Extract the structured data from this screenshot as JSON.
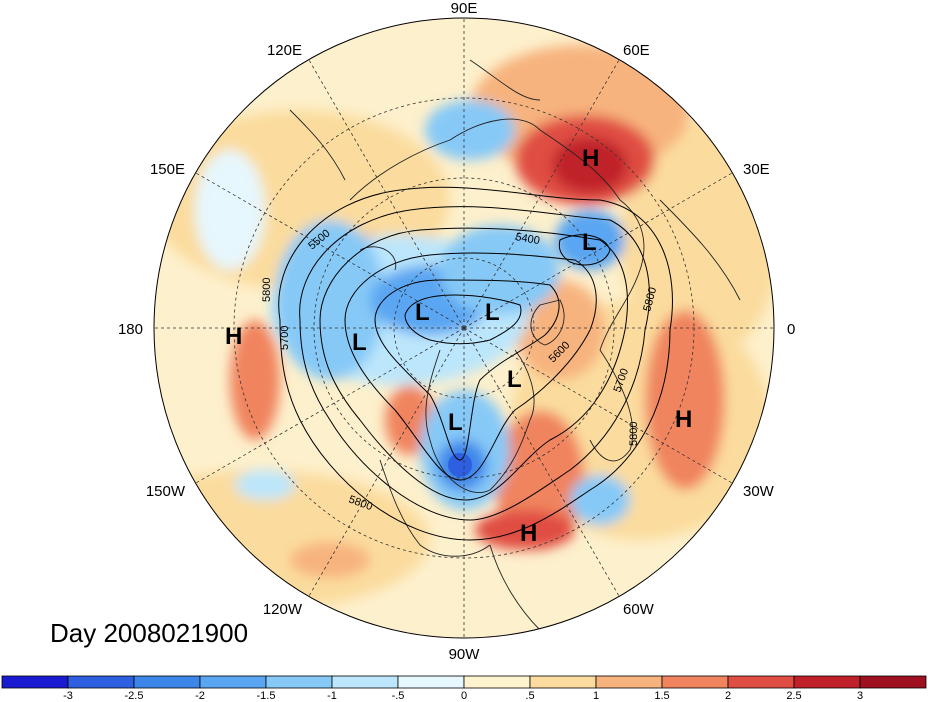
{
  "title": "Day 2008021900",
  "longitude_labels": [
    {
      "text": "90E",
      "lon": 90
    },
    {
      "text": "60E",
      "lon": 60
    },
    {
      "text": "30E",
      "lon": 30
    },
    {
      "text": "0",
      "lon": 0
    },
    {
      "text": "30W",
      "lon": -30
    },
    {
      "text": "60W",
      "lon": -60
    },
    {
      "text": "90W",
      "lon": -90
    },
    {
      "text": "120W",
      "lon": -120
    },
    {
      "text": "150W",
      "lon": -150
    },
    {
      "text": "180",
      "lon": 180
    },
    {
      "text": "150E",
      "lon": 150
    },
    {
      "text": "120E",
      "lon": 120
    }
  ],
  "contour_labels": [
    "5500",
    "5400",
    "5800",
    "5700",
    "5600",
    "5700",
    "5800",
    "5800"
  ],
  "pressure_centers": [
    {
      "type": "H",
      "name": "high-center-siberia"
    },
    {
      "type": "L",
      "name": "low-center-north-atlantic-east"
    },
    {
      "type": "L",
      "name": "low-center-arctic-west"
    },
    {
      "type": "L",
      "name": "low-center-arctic-east"
    },
    {
      "type": "L",
      "name": "low-center-bering"
    },
    {
      "type": "H",
      "name": "high-center-dateline"
    },
    {
      "type": "L",
      "name": "low-center-hudson"
    },
    {
      "type": "L",
      "name": "low-center-canada"
    },
    {
      "type": "H",
      "name": "high-center-atlantic-east"
    },
    {
      "type": "H",
      "name": "high-center-caribbean"
    }
  ],
  "colorbar": {
    "labels": [
      "-3",
      "-2.5",
      "-2",
      "-1.5",
      "-1",
      "-.5",
      "0",
      ".5",
      "1",
      "1.5",
      "2",
      "2.5",
      "3"
    ],
    "colors": [
      "#1a1ad1",
      "#2e5fe0",
      "#3c86ea",
      "#5aa6f2",
      "#86c9f7",
      "#bce6fb",
      "#e6f7fd",
      "#fdf3cf",
      "#fbdc9e",
      "#f7b37e",
      "#f0845e",
      "#e04d42",
      "#c0202a",
      "#9e1020"
    ]
  }
}
